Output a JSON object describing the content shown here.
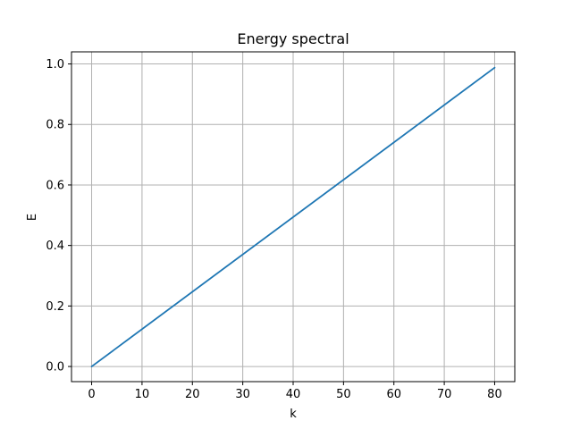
{
  "chart_data": {
    "type": "line",
    "title": "Energy spectral",
    "xlabel": "k",
    "ylabel": "E",
    "xlim": [
      -4,
      84
    ],
    "ylim": [
      -0.05,
      1.04
    ],
    "xticks": [
      0,
      10,
      20,
      30,
      40,
      50,
      60,
      70,
      80
    ],
    "yticks": [
      0.0,
      0.2,
      0.4,
      0.6,
      0.8,
      1.0
    ],
    "xtick_labels": [
      "0",
      "10",
      "20",
      "30",
      "40",
      "50",
      "60",
      "70",
      "80"
    ],
    "ytick_labels": [
      "0.0",
      "0.2",
      "0.4",
      "0.6",
      "0.8",
      "1.0"
    ],
    "grid": true,
    "series": [
      {
        "color": "#1f77b4",
        "x": [
          0,
          80
        ],
        "y": [
          0.0,
          0.9877
        ]
      }
    ]
  },
  "colors": {
    "grid": "#b0b0b0",
    "axes": "#000000",
    "background": "#ffffff"
  }
}
